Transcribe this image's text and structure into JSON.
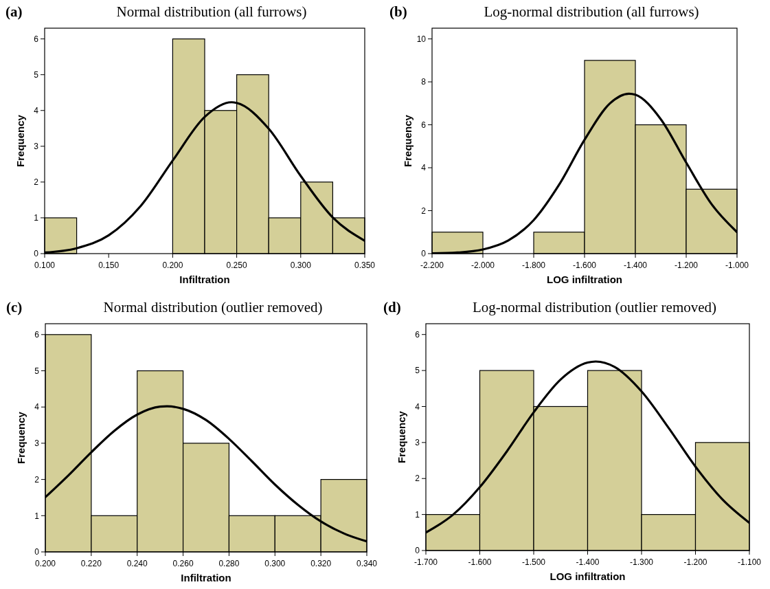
{
  "chart_data": [
    {
      "type": "histogram",
      "title": "Normal distribution (all furrows)",
      "annotations": [
        "(a)"
      ],
      "xlabel": "Infiltration",
      "ylabel": "Frequency",
      "color": "#d4cf98",
      "bins": [
        0.1,
        0.125,
        0.15,
        0.175,
        0.2,
        0.225,
        0.25,
        0.275,
        0.3,
        0.325,
        0.35
      ],
      "values": [
        1,
        0,
        0,
        0,
        6,
        4,
        5,
        1,
        2,
        1
      ],
      "series": [
        {
          "type": "line",
          "color": "#000000",
          "x": [
            0.1,
            0.125,
            0.15,
            0.175,
            0.2,
            0.225,
            0.246,
            0.25,
            0.275,
            0.3,
            0.325,
            0.35
          ],
          "values": [
            0.03,
            0.15,
            0.51,
            1.33,
            2.6,
            3.82,
            4.23,
            4.21,
            3.49,
            2.17,
            1.01,
            0.36
          ]
        }
      ],
      "xlim": [
        0.1,
        0.35
      ],
      "xticks": [
        {
          "value": 0.1,
          "label": "0.100"
        },
        {
          "value": 0.15,
          "label": "0.150"
        },
        {
          "value": 0.2,
          "label": "0.200"
        },
        {
          "value": 0.25,
          "label": "0.250"
        },
        {
          "value": 0.3,
          "label": "0.300"
        },
        {
          "value": 0.35,
          "label": "0.350"
        }
      ],
      "ylim": [
        0,
        6.3
      ],
      "yticks": [
        0,
        1,
        2,
        3,
        4,
        5,
        6
      ]
    },
    {
      "type": "histogram",
      "title": "Log-normal distribution (all furrows)",
      "annotations": [
        "(b)"
      ],
      "xlabel": "LOG infiltration",
      "ylabel": "Frequency",
      "color": "#d4cf98",
      "bins": [
        -2.2,
        -2.0,
        -1.8,
        -1.6,
        -1.4,
        -1.2,
        -1.0
      ],
      "values": [
        1,
        0,
        1,
        9,
        6,
        3
      ],
      "series": [
        {
          "type": "line",
          "color": "#000000",
          "x": [
            -2.2,
            -2.1,
            -2.0,
            -1.9,
            -1.8,
            -1.7,
            -1.6,
            -1.5,
            -1.425,
            -1.4,
            -1.3,
            -1.2,
            -1.1,
            -1.0
          ],
          "values": [
            0.01,
            0.05,
            0.19,
            0.61,
            1.56,
            3.21,
            5.3,
            7.0,
            7.45,
            7.4,
            6.26,
            4.24,
            2.3,
            1.0
          ]
        }
      ],
      "xlim": [
        -2.2,
        -1.0
      ],
      "xticks": [
        {
          "value": -2.2,
          "label": "-2.200"
        },
        {
          "value": -2.0,
          "label": "-2.000"
        },
        {
          "value": -1.8,
          "label": "-1.800"
        },
        {
          "value": -1.6,
          "label": "-1.600"
        },
        {
          "value": -1.4,
          "label": "-1.400"
        },
        {
          "value": -1.2,
          "label": "-1.200"
        },
        {
          "value": -1.0,
          "label": "-1.000"
        }
      ],
      "ylim": [
        0,
        10.5
      ],
      "yticks": [
        0,
        2,
        4,
        6,
        8,
        10
      ]
    },
    {
      "type": "histogram",
      "title": "Normal distribution (outlier removed)",
      "annotations": [
        "(c)"
      ],
      "xlabel": "Infiltration",
      "ylabel": "Frequency",
      "color": "#d4cf98",
      "bins": [
        0.2,
        0.22,
        0.24,
        0.26,
        0.28,
        0.3,
        0.32,
        0.34
      ],
      "values": [
        6,
        1,
        5,
        3,
        1,
        1,
        2
      ],
      "series": [
        {
          "type": "line",
          "color": "#000000",
          "x": [
            0.2,
            0.21,
            0.22,
            0.23,
            0.24,
            0.25,
            0.253,
            0.26,
            0.27,
            0.28,
            0.29,
            0.3,
            0.31,
            0.32,
            0.33,
            0.34
          ],
          "values": [
            1.51,
            2.11,
            2.75,
            3.34,
            3.79,
            4.01,
            4.02,
            3.95,
            3.64,
            3.12,
            2.5,
            1.86,
            1.3,
            0.84,
            0.51,
            0.29
          ]
        }
      ],
      "xlim": [
        0.2,
        0.34
      ],
      "xticks": [
        {
          "value": 0.2,
          "label": "0.200"
        },
        {
          "value": 0.22,
          "label": "0.220"
        },
        {
          "value": 0.24,
          "label": "0.240"
        },
        {
          "value": 0.26,
          "label": "0.260"
        },
        {
          "value": 0.28,
          "label": "0.280"
        },
        {
          "value": 0.3,
          "label": "0.300"
        },
        {
          "value": 0.32,
          "label": "0.320"
        },
        {
          "value": 0.34,
          "label": "0.340"
        }
      ],
      "ylim": [
        0,
        6.3
      ],
      "yticks": [
        0,
        1,
        2,
        3,
        4,
        5,
        6
      ]
    },
    {
      "type": "histogram",
      "title": "Log-normal distribution (outlier removed)",
      "annotations": [
        "(d)"
      ],
      "xlabel": "LOG infiltration",
      "ylabel": "Frequency",
      "color": "#d4cf98",
      "bins": [
        -1.7,
        -1.6,
        -1.5,
        -1.4,
        -1.3,
        -1.2,
        -1.1
      ],
      "values": [
        1,
        5,
        4,
        5,
        1,
        3
      ],
      "series": [
        {
          "type": "line",
          "color": "#000000",
          "x": [
            -1.7,
            -1.65,
            -1.6,
            -1.55,
            -1.5,
            -1.45,
            -1.4,
            -1.385,
            -1.35,
            -1.3,
            -1.25,
            -1.2,
            -1.15,
            -1.1
          ],
          "values": [
            0.5,
            0.99,
            1.76,
            2.75,
            3.84,
            4.75,
            5.22,
            5.25,
            5.1,
            4.42,
            3.41,
            2.33,
            1.42,
            0.77
          ]
        }
      ],
      "xlim": [
        -1.7,
        -1.1
      ],
      "xticks": [
        {
          "value": -1.7,
          "label": "-1.700"
        },
        {
          "value": -1.6,
          "label": "-1.600"
        },
        {
          "value": -1.5,
          "label": "-1.500"
        },
        {
          "value": -1.4,
          "label": "-1.400"
        },
        {
          "value": -1.3,
          "label": "-1.300"
        },
        {
          "value": -1.2,
          "label": "-1.200"
        },
        {
          "value": -1.1,
          "label": "-1.100"
        }
      ],
      "ylim": [
        0,
        6.3
      ],
      "yticks": [
        0,
        1,
        2,
        3,
        4,
        5,
        6
      ]
    }
  ]
}
